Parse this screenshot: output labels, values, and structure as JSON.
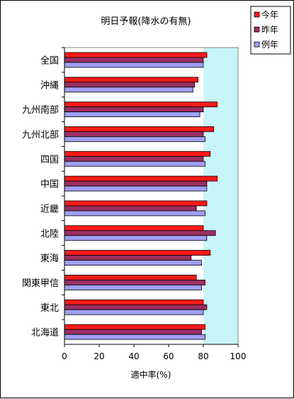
{
  "chart_data": {
    "type": "bar",
    "orientation": "horizontal",
    "title": "明日予報(降水の有無)",
    "xlabel": "適中率(%)",
    "ylabel": "",
    "xlim": [
      0,
      100
    ],
    "xticks": [
      "0",
      "20",
      "40",
      "60",
      "80",
      "100"
    ],
    "grid": false,
    "legend_position": "top-right",
    "colors": {
      "plot_background": "#c8f5fa",
      "outside_background": "#ffffff"
    },
    "categories": [
      "全国",
      "沖縄",
      "九州南部",
      "九州北部",
      "四国",
      "中国",
      "近畿",
      "北陸",
      "東海",
      "関東甲信",
      "東北",
      "北海道"
    ],
    "series": [
      {
        "name": "今年",
        "color": "#ff1a1a",
        "values": [
          82,
          77,
          88,
          86,
          84,
          88,
          82,
          80,
          84,
          76,
          80,
          81
        ]
      },
      {
        "name": "昨年",
        "color": "#9c2f63",
        "values": [
          80,
          75,
          80,
          80,
          80,
          82,
          76,
          87,
          73,
          81,
          82,
          79
        ]
      },
      {
        "name": "例年",
        "color": "#9f9ff5",
        "values": [
          80,
          74,
          78,
          81,
          81,
          82,
          81,
          82,
          79,
          79,
          80,
          81
        ]
      }
    ]
  }
}
